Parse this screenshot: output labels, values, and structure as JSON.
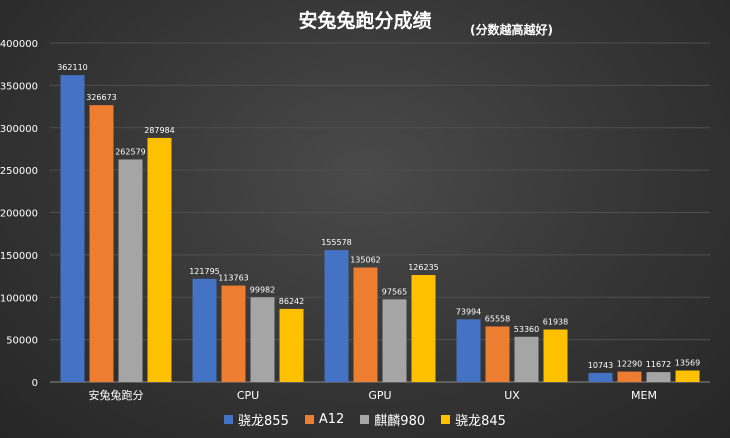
{
  "chart_data": {
    "type": "bar",
    "title": "安兔兔跑分成绩",
    "subtitle": "(分数越高越好)",
    "categories": [
      "安兔兔跑分",
      "CPU",
      "GPU",
      "UX",
      "MEM"
    ],
    "series": [
      {
        "name": "骁龙855",
        "color": "#4472c4",
        "values": [
          362110,
          121795,
          155578,
          73994,
          10743
        ]
      },
      {
        "name": "A12",
        "color": "#ed7d31",
        "values": [
          326673,
          113763,
          135062,
          65558,
          12290
        ]
      },
      {
        "name": "麒麟980",
        "color": "#a5a5a5",
        "values": [
          262579,
          99982,
          97565,
          53360,
          11672
        ]
      },
      {
        "name": "骁龙845",
        "color": "#ffc000",
        "values": [
          287984,
          86242,
          126235,
          61938,
          13569
        ]
      }
    ],
    "yticks": [
      "0",
      "50000",
      "100000",
      "150000",
      "200000",
      "250000",
      "300000",
      "350000",
      "400000"
    ],
    "ylim": [
      0,
      400000
    ],
    "xlabel": "",
    "ylabel": "",
    "grid": true,
    "legend_position": "bottom"
  }
}
